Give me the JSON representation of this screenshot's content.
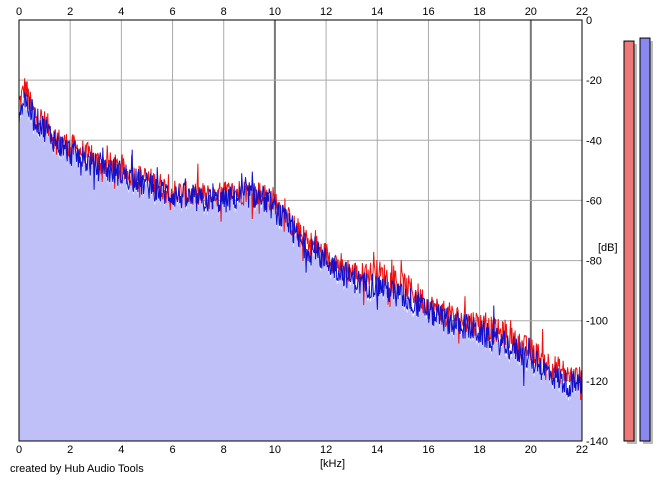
{
  "chart_data": {
    "type": "line",
    "xlabel": "[kHz]",
    "ylabel": "[dB]",
    "xlim": [
      0,
      22
    ],
    "ylim": [
      -140,
      0
    ],
    "x_ticks": [
      0,
      2,
      4,
      6,
      8,
      10,
      12,
      14,
      16,
      18,
      20,
      22
    ],
    "y_ticks": [
      0,
      -20,
      -40,
      -60,
      -80,
      -100,
      -120,
      -140
    ],
    "grid": true,
    "series": [
      {
        "color": "#ee1111",
        "x": [
          0,
          0.25,
          0.5,
          1,
          1.5,
          2,
          2.5,
          3,
          3.5,
          4,
          4.5,
          5,
          5.5,
          6,
          6.5,
          7,
          7.5,
          8,
          8.5,
          9,
          9.5,
          10,
          10.5,
          11,
          11.5,
          12,
          12.5,
          13,
          13.5,
          14,
          14.5,
          15,
          15.5,
          16,
          16.5,
          17,
          17.5,
          18,
          18.5,
          19,
          19.5,
          20,
          20.5,
          21,
          21.5,
          22
        ],
        "values": [
          -28,
          -22,
          -30,
          -34,
          -40,
          -42,
          -44,
          -47,
          -48,
          -50,
          -52,
          -53,
          -55,
          -57,
          -58,
          -58,
          -59,
          -58,
          -57,
          -57,
          -58,
          -60,
          -66,
          -72,
          -75,
          -78,
          -81,
          -84,
          -85,
          -84,
          -86,
          -88,
          -91,
          -95,
          -97,
          -99,
          -100,
          -101,
          -103,
          -105,
          -108,
          -110,
          -113,
          -116,
          -118,
          -120
        ]
      },
      {
        "color": "#1111cc",
        "x": [
          0,
          0.25,
          0.5,
          1,
          1.5,
          2,
          2.5,
          3,
          3.5,
          4,
          4.5,
          5,
          5.5,
          6,
          6.5,
          7,
          7.5,
          8,
          8.5,
          9,
          9.5,
          10,
          10.5,
          11,
          11.5,
          12,
          12.5,
          13,
          13.5,
          14,
          14.5,
          15,
          15.5,
          16,
          16.5,
          17,
          17.5,
          18,
          18.5,
          19,
          19.5,
          20,
          20.5,
          21,
          21.5,
          22
        ],
        "values": [
          -30,
          -26,
          -32,
          -36,
          -41,
          -44,
          -46,
          -49,
          -50,
          -51,
          -53,
          -55,
          -57,
          -58,
          -59,
          -60,
          -60,
          -60,
          -59,
          -58,
          -59,
          -63,
          -68,
          -74,
          -77,
          -80,
          -83,
          -86,
          -88,
          -88,
          -90,
          -92,
          -94,
          -97,
          -99,
          -101,
          -102,
          -104,
          -106,
          -108,
          -110,
          -113,
          -116,
          -119,
          -121,
          -121
        ]
      }
    ],
    "level_meters": [
      {
        "color": "#ee7777",
        "value": -7
      },
      {
        "color": "#8888ee",
        "value": -6
      }
    ]
  },
  "credit": "created by Hub Audio Tools"
}
